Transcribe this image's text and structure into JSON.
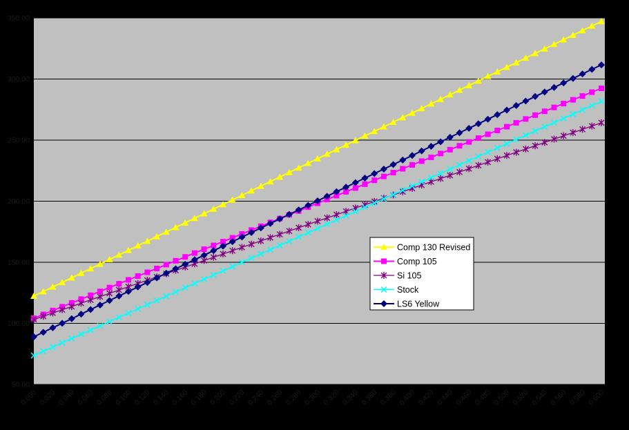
{
  "page_bg": "#000000",
  "chart_data": {
    "type": "line",
    "title": "",
    "xlabel": "",
    "ylabel": "",
    "grid": true,
    "plot_bg": "#C0C0C0",
    "gridline_color": "#000000",
    "tick_label_color": "#1C1C1C",
    "x_axis": {
      "min": 0.0,
      "max": 0.6,
      "tick_step": 0.02,
      "marker_substep": 0.01,
      "label_rotation_deg": -45,
      "tick_labels": [
        "0.000",
        "0.020",
        "0.040",
        "0.060",
        "0.080",
        "0.100",
        "0.120",
        "0.140",
        "0.160",
        "0.180",
        "0.200",
        "0.220",
        "0.240",
        "0.260",
        "0.280",
        "0.300",
        "0.320",
        "0.340",
        "0.360",
        "0.380",
        "0.400",
        "0.420",
        "0.440",
        "0.460",
        "0.480",
        "0.500",
        "0.520",
        "0.540",
        "0.560",
        "0.580",
        "0.600"
      ]
    },
    "y_axis": {
      "min": 50,
      "max": 350,
      "tick_step": 50,
      "tick_labels": [
        "50.00",
        "100.00",
        "150.00",
        "200.00",
        "250.00",
        "300.00",
        "350.00"
      ]
    },
    "x_values": [
      0.0,
      0.02,
      0.04,
      0.06,
      0.08,
      0.1,
      0.12,
      0.14,
      0.16,
      0.18,
      0.2,
      0.22,
      0.24,
      0.26,
      0.28,
      0.3,
      0.32,
      0.34,
      0.36,
      0.38,
      0.4,
      0.42,
      0.44,
      0.46,
      0.48,
      0.5,
      0.52,
      0.54,
      0.56,
      0.58,
      0.6
    ],
    "series": [
      {
        "name": "Comp 130 Revised",
        "color": "#FFFF00",
        "marker": "triangle",
        "line_width": 2,
        "values": [
          122.3,
          129.8,
          137.3,
          144.8,
          152.3,
          159.8,
          167.3,
          174.8,
          182.3,
          189.8,
          197.3,
          204.8,
          212.3,
          219.8,
          227.3,
          234.8,
          242.3,
          249.7,
          257.2,
          264.7,
          272.2,
          279.7,
          287.2,
          294.7,
          302.2,
          309.7,
          317.2,
          324.7,
          332.2,
          339.7,
          347.2
        ]
      },
      {
        "name": "Comp 105",
        "color": "#FF00FF",
        "marker": "square",
        "line_width": 2,
        "values": [
          104.2,
          110.5,
          116.7,
          123.0,
          129.3,
          135.6,
          141.8,
          148.1,
          154.4,
          160.7,
          166.9,
          173.2,
          179.5,
          185.8,
          192.0,
          198.3,
          204.6,
          210.8,
          217.1,
          223.4,
          229.7,
          235.9,
          242.2,
          248.5,
          254.8,
          261.0,
          267.3,
          273.6,
          279.9,
          286.1,
          292.4
        ]
      },
      {
        "name": "Si 105",
        "color": "#800080",
        "marker": "asterisk",
        "line_width": 1.3,
        "values": [
          103.1,
          108.5,
          113.8,
          119.2,
          124.6,
          130.0,
          135.3,
          140.7,
          146.1,
          151.4,
          156.8,
          162.2,
          167.5,
          172.9,
          178.3,
          183.7,
          189.0,
          194.4,
          199.8,
          205.1,
          210.5,
          215.9,
          221.2,
          226.6,
          232.0,
          237.4,
          242.7,
          248.1,
          253.5,
          258.8,
          264.2
        ]
      },
      {
        "name": "Stock",
        "color": "#00FFFF",
        "marker": "x",
        "line_width": 1.5,
        "values": [
          73.7,
          80.6,
          87.6,
          94.5,
          101.4,
          108.4,
          115.3,
          122.2,
          129.2,
          136.1,
          143.0,
          150.0,
          156.9,
          163.8,
          170.8,
          177.7,
          184.6,
          191.6,
          198.5,
          205.4,
          212.4,
          219.3,
          226.2,
          233.2,
          240.1,
          247.0,
          254.0,
          260.9,
          267.8,
          274.8,
          281.7
        ]
      },
      {
        "name": "LS6 Yellow",
        "color": "#000080",
        "marker": "diamond",
        "line_width": 2,
        "values": [
          89.0,
          96.4,
          103.8,
          111.3,
          118.7,
          126.1,
          133.5,
          141.0,
          148.4,
          155.8,
          163.2,
          170.6,
          178.1,
          185.5,
          192.9,
          200.3,
          207.8,
          215.2,
          222.6,
          230.0,
          237.4,
          244.9,
          252.3,
          259.7,
          267.1,
          274.6,
          282.0,
          289.4,
          296.8,
          304.2,
          311.6
        ]
      }
    ],
    "legend": {
      "position": "inside-right-center",
      "bg": "#FFFFFF",
      "border": "#000000",
      "text_color": "#000000",
      "entries": [
        "Comp 130 Revised",
        "Comp 105",
        "Si 105",
        "Stock",
        "LS6 Yellow"
      ]
    }
  }
}
